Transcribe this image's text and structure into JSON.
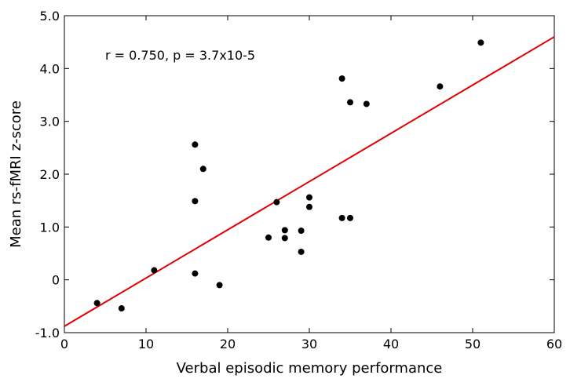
{
  "chart_data": {
    "type": "scatter",
    "title": "",
    "xlabel": "Verbal episodic memory performance",
    "ylabel": "Mean rs-fMRI z-score",
    "xlim": [
      0,
      60
    ],
    "ylim": [
      -1.0,
      5.0
    ],
    "xticks": [
      0,
      10,
      20,
      30,
      40,
      50,
      60
    ],
    "xtick_labels": [
      "0",
      "10",
      "20",
      "30",
      "40",
      "50",
      "60"
    ],
    "yticks": [
      -1.0,
      0,
      1.0,
      2.0,
      3.0,
      4.0,
      5.0
    ],
    "ytick_labels": [
      "-1.0",
      "0",
      "1.0",
      "2.0",
      "3.0",
      "4.0",
      "5.0"
    ],
    "grid": false,
    "annotation": "r = 0.750, p = 3.7x10-5",
    "point_color": "#000000",
    "points": [
      {
        "x": 4,
        "y": -0.44
      },
      {
        "x": 7,
        "y": -0.54
      },
      {
        "x": 11,
        "y": 0.18
      },
      {
        "x": 16,
        "y": 2.56
      },
      {
        "x": 16,
        "y": 1.49
      },
      {
        "x": 16,
        "y": 0.12
      },
      {
        "x": 17,
        "y": 2.1
      },
      {
        "x": 19,
        "y": -0.1
      },
      {
        "x": 25,
        "y": 0.8
      },
      {
        "x": 26,
        "y": 1.47
      },
      {
        "x": 27,
        "y": 0.94
      },
      {
        "x": 27,
        "y": 0.79
      },
      {
        "x": 29,
        "y": 0.93
      },
      {
        "x": 29,
        "y": 0.53
      },
      {
        "x": 30,
        "y": 1.56
      },
      {
        "x": 30,
        "y": 1.38
      },
      {
        "x": 34,
        "y": 3.81
      },
      {
        "x": 34,
        "y": 1.17
      },
      {
        "x": 35,
        "y": 3.36
      },
      {
        "x": 35,
        "y": 1.17
      },
      {
        "x": 37,
        "y": 3.33
      },
      {
        "x": 46,
        "y": 3.66
      },
      {
        "x": 51,
        "y": 4.49
      }
    ],
    "fit_line": {
      "color": "#e00000",
      "x": [
        0,
        60
      ],
      "y": [
        -0.88,
        4.6
      ]
    }
  }
}
